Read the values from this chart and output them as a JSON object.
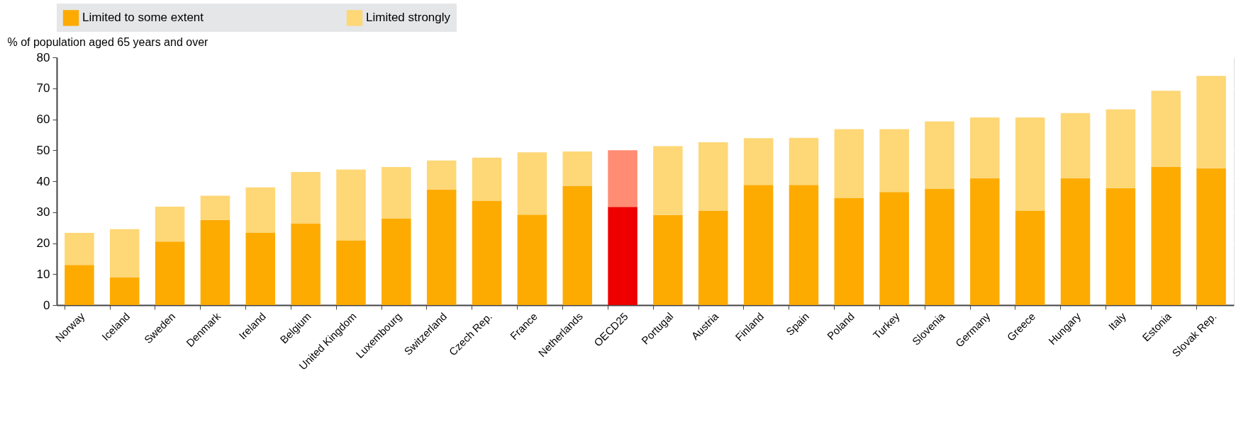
{
  "chart_data": {
    "type": "bar",
    "stacked": true,
    "ylabel": "% of population aged 65 years and over",
    "categories": [
      "Norway",
      "Iceland",
      "Sweden",
      "Denmark",
      "Ireland",
      "Belgium",
      "United Kingdom",
      "Luxembourg",
      "Switzerland",
      "Czech Rep.",
      "France",
      "Netherlands",
      "OECD25",
      "Portugal",
      "Austria",
      "Finland",
      "Spain",
      "Poland",
      "Turkey",
      "Slovenia",
      "Germany",
      "Greece",
      "Hungary",
      "Italy",
      "Estonia",
      "Slovak Rep."
    ],
    "series": [
      {
        "name": "Limited to some extent",
        "color": "#fdab00",
        "colors": [
          "#fdab00",
          "#fdab00",
          "#fdab00",
          "#fdab00",
          "#fdab00",
          "#fdab00",
          "#fdab00",
          "#fdab00",
          "#fdab00",
          "#fdab00",
          "#fdab00",
          "#fdab00",
          "#ee0000",
          "#fdab00",
          "#fdab00",
          "#fdab00",
          "#fdab00",
          "#fdab00",
          "#fdab00",
          "#fdab00",
          "#fdab00",
          "#fdab00",
          "#fdab00",
          "#fdab00",
          "#fdab00",
          "#fdab00"
        ],
        "values": [
          13,
          9,
          20.5,
          27.5,
          23.3,
          26.4,
          20.8,
          28,
          37.3,
          33.6,
          29.2,
          38.5,
          31.7,
          29.1,
          30.5,
          38.8,
          38.8,
          34.5,
          36.5,
          37.5,
          41,
          30.4,
          41,
          37.8,
          44.7,
          44.2
        ]
      },
      {
        "name": "Limited strongly",
        "color": "#fed776",
        "colors": [
          "#fed776",
          "#fed776",
          "#fed776",
          "#fed776",
          "#fed776",
          "#fed776",
          "#fed776",
          "#fed776",
          "#fed776",
          "#fed776",
          "#fed776",
          "#fed776",
          "#ff8c73",
          "#fed776",
          "#fed776",
          "#fed776",
          "#fed776",
          "#fed776",
          "#fed776",
          "#fed776",
          "#fed776",
          "#fed776",
          "#fed776",
          "#fed776",
          "#fed776",
          "#fed776"
        ],
        "values": [
          10.3,
          15.5,
          11.3,
          7.8,
          14.7,
          16.6,
          23,
          16.6,
          9.4,
          14,
          20.1,
          11.1,
          18.3,
          22.2,
          22.1,
          15.1,
          15.2,
          22.3,
          20.3,
          21.8,
          19.6,
          30.2,
          21,
          25.4,
          24.5,
          29.8
        ]
      }
    ],
    "ylim": [
      0,
      80
    ],
    "yticks": [
      0,
      10,
      20,
      30,
      40,
      50,
      60,
      70,
      80
    ],
    "grid": true,
    "legend": "top"
  }
}
